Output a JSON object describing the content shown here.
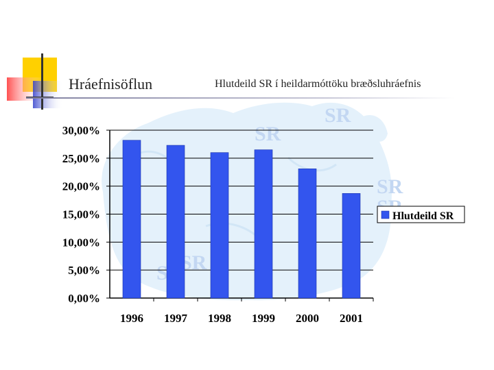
{
  "slide": {
    "title": "Hráefnisöflun",
    "subtitle": "Hlutdeild SR í heildarmóttöku bræðsluhráefnis"
  },
  "colors": {
    "bar": "#3355ee",
    "deco_yellow": "#ffd000",
    "deco_red": "#ff3d3d",
    "deco_blue": "#3340cc",
    "map_bg": "#e4f1fb"
  },
  "chart_data": {
    "type": "bar",
    "categories": [
      "1996",
      "1997",
      "1998",
      "1999",
      "2000",
      "2001"
    ],
    "series": [
      {
        "name": "Hlutdeild SR",
        "values": [
          28.2,
          27.3,
          26.0,
          26.5,
          23.1,
          18.7
        ]
      }
    ],
    "y_ticks": [
      "0,00%",
      "5,00%",
      "10,00%",
      "15,00%",
      "20,00%",
      "25,00%",
      "30,00%"
    ],
    "ylim": [
      0,
      30
    ],
    "title": "",
    "xlabel": "",
    "ylabel": "",
    "grid": true,
    "legend_position": "right"
  }
}
